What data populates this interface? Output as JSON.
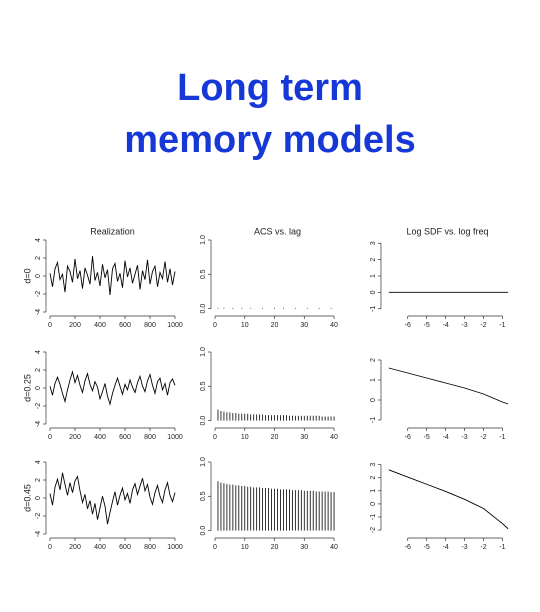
{
  "title": "Long term memory models",
  "chart_data": [
    {
      "type": "line",
      "title": "Realization",
      "ylabel": "d=0",
      "color": "#000000",
      "x": [
        0,
        20,
        40,
        60,
        80,
        100,
        120,
        140,
        160,
        180,
        200,
        220,
        240,
        260,
        280,
        300,
        320,
        340,
        360,
        380,
        400,
        420,
        440,
        460,
        480,
        500,
        520,
        540,
        560,
        580,
        600,
        620,
        640,
        660,
        680,
        700,
        720,
        740,
        760,
        780,
        800,
        820,
        840,
        860,
        880,
        900,
        920,
        940,
        960,
        980,
        1000
      ],
      "values": [
        0.3,
        -1.2,
        0.8,
        1.5,
        -0.4,
        0.2,
        -1.8,
        1.1,
        0.5,
        -0.7,
        1.9,
        -0.3,
        0.6,
        -1.4,
        0.9,
        0.1,
        -0.9,
        2.2,
        -0.5,
        0.4,
        -1.1,
        1.3,
        -0.2,
        0.7,
        -2.1,
        0.8,
        1.4,
        -0.6,
        0.3,
        -1.3,
        1.7,
        -0.1,
        0.9,
        -0.8,
        0.2,
        1.2,
        -1.5,
        0.6,
        -0.4,
        1.8,
        -0.9,
        0.5,
        1.1,
        -1.2,
        0.4,
        -0.3,
        1.6,
        -0.7,
        0.8,
        -1.0,
        0.5
      ],
      "xlim": [
        0,
        1000
      ],
      "ylim": [
        -4,
        4
      ],
      "xticks": [
        0,
        200,
        400,
        600,
        800,
        1000
      ],
      "yticks": [
        -4,
        -2,
        0,
        2,
        4
      ]
    },
    {
      "type": "bar",
      "title": "ACS vs. lag",
      "color": "#000000",
      "x": [
        1,
        2,
        3,
        4,
        5,
        6,
        7,
        8,
        9,
        10,
        11,
        12,
        13,
        14,
        15,
        16,
        17,
        18,
        19,
        20,
        21,
        22,
        23,
        24,
        25,
        26,
        27,
        28,
        29,
        30,
        31,
        32,
        33,
        34,
        35,
        36,
        37,
        38,
        39,
        40
      ],
      "values": [
        0.01,
        0,
        0.01,
        0,
        0,
        0.01,
        0,
        0,
        0.01,
        0,
        0,
        0.01,
        0,
        0,
        0,
        0.01,
        0,
        0,
        0,
        0.01,
        0,
        0,
        0.01,
        0,
        0,
        0,
        0.01,
        0,
        0,
        0,
        0.01,
        0,
        0,
        0,
        0.01,
        0,
        0,
        0,
        0.01,
        0
      ],
      "xlim": [
        0,
        42
      ],
      "ylim": [
        -0.05,
        1
      ],
      "xticks": [
        0,
        10,
        20,
        30,
        40
      ],
      "yticks": [
        {
          "value": 0,
          "label": "0.0"
        },
        {
          "value": 0.5,
          "label": "0.5"
        },
        {
          "value": 1,
          "label": "1.0"
        }
      ]
    },
    {
      "type": "line",
      "title": "Log SDF vs. log freq",
      "color": "#000000",
      "x": [
        -7,
        -6,
        -5,
        -4,
        -3,
        -2,
        -1,
        -0.7
      ],
      "values": [
        0,
        0,
        0,
        0,
        0,
        0,
        0,
        0
      ],
      "xlim": [
        -7.2,
        -0.6
      ],
      "ylim": [
        -1.2,
        3.2
      ],
      "xticks": [
        -6,
        -5,
        -4,
        -3,
        -2,
        -1
      ],
      "yticks": [
        -1,
        0,
        1,
        2,
        3
      ]
    },
    {
      "type": "line",
      "ylabel": "d=0.25",
      "color": "#000000",
      "x": [
        0,
        20,
        40,
        60,
        80,
        100,
        120,
        140,
        160,
        180,
        200,
        220,
        240,
        260,
        280,
        300,
        320,
        340,
        360,
        380,
        400,
        420,
        440,
        460,
        480,
        500,
        520,
        540,
        560,
        580,
        600,
        620,
        640,
        660,
        680,
        700,
        720,
        740,
        760,
        780,
        800,
        820,
        840,
        860,
        880,
        900,
        920,
        940,
        960,
        980,
        1000
      ],
      "values": [
        0.2,
        -0.8,
        0.5,
        1.2,
        0.4,
        -0.6,
        -1.5,
        -0.2,
        0.9,
        1.8,
        0.6,
        1.4,
        0.3,
        -0.5,
        0.8,
        1.6,
        0.4,
        -0.3,
        0.7,
        0.1,
        -1.2,
        -0.4,
        0.5,
        -0.9,
        -1.8,
        -0.6,
        0.3,
        1.1,
        0.2,
        -0.7,
        0.4,
        -0.2,
        0.9,
        0.1,
        -0.5,
        0.6,
        1.3,
        0.2,
        -0.4,
        0.8,
        1.5,
        0.3,
        -0.6,
        0.7,
        1.1,
        -0.2,
        0.5,
        -0.8,
        0.6,
        1.0,
        0.3
      ],
      "xlim": [
        0,
        1000
      ],
      "ylim": [
        -4,
        4
      ],
      "xticks": [
        0,
        200,
        400,
        600,
        800,
        1000
      ],
      "yticks": [
        -4,
        -2,
        0,
        2,
        4
      ]
    },
    {
      "type": "bar",
      "color": "#000000",
      "x": [
        1,
        2,
        3,
        4,
        5,
        6,
        7,
        8,
        9,
        10,
        11,
        12,
        13,
        14,
        15,
        16,
        17,
        18,
        19,
        20,
        21,
        22,
        23,
        24,
        25,
        26,
        27,
        28,
        29,
        30,
        31,
        32,
        33,
        34,
        35,
        36,
        37,
        38,
        39,
        40
      ],
      "values": [
        0.16,
        0.14,
        0.13,
        0.12,
        0.12,
        0.11,
        0.11,
        0.1,
        0.1,
        0.1,
        0.1,
        0.09,
        0.09,
        0.09,
        0.09,
        0.09,
        0.08,
        0.08,
        0.08,
        0.08,
        0.08,
        0.08,
        0.08,
        0.08,
        0.07,
        0.07,
        0.07,
        0.07,
        0.07,
        0.07,
        0.07,
        0.07,
        0.07,
        0.07,
        0.07,
        0.06,
        0.06,
        0.06,
        0.06,
        0.06
      ],
      "xlim": [
        0,
        42
      ],
      "ylim": [
        -0.05,
        1
      ],
      "xticks": [
        0,
        10,
        20,
        30,
        40
      ],
      "yticks": [
        {
          "value": 0,
          "label": "0.0"
        },
        {
          "value": 0.5,
          "label": "0.5"
        },
        {
          "value": 1,
          "label": "1.0"
        }
      ]
    },
    {
      "type": "line",
      "color": "#000000",
      "x": [
        -7,
        -6,
        -5,
        -4,
        -3,
        -2,
        -1,
        -0.7
      ],
      "values": [
        1.6,
        1.35,
        1.1,
        0.85,
        0.6,
        0.3,
        -0.1,
        -0.2
      ],
      "xlim": [
        -7.2,
        -0.6
      ],
      "ylim": [
        -1.2,
        2.4
      ],
      "xticks": [
        -6,
        -5,
        -4,
        -3,
        -2,
        -1
      ],
      "yticks": [
        -1,
        0,
        1,
        2
      ]
    },
    {
      "type": "line",
      "ylabel": "d=0.45",
      "color": "#000000",
      "x": [
        0,
        20,
        40,
        60,
        80,
        100,
        120,
        140,
        160,
        180,
        200,
        220,
        240,
        260,
        280,
        300,
        320,
        340,
        360,
        380,
        400,
        420,
        440,
        460,
        480,
        500,
        520,
        540,
        560,
        580,
        600,
        620,
        640,
        660,
        680,
        700,
        720,
        740,
        760,
        780,
        800,
        820,
        840,
        860,
        880,
        900,
        920,
        940,
        960,
        980,
        1000
      ],
      "values": [
        0.5,
        -0.8,
        1.2,
        2.1,
        0.9,
        2.8,
        1.5,
        0.3,
        1.7,
        0.6,
        1.9,
        2.4,
        0.8,
        -0.5,
        0.4,
        -1.2,
        -0.3,
        -1.8,
        -0.6,
        -2.4,
        -1.1,
        0.2,
        -0.9,
        -2.9,
        -1.6,
        -0.4,
        0.7,
        -0.8,
        0.3,
        1.1,
        -0.2,
        0.5,
        -0.6,
        0.9,
        1.6,
        0.4,
        1.3,
        2.2,
        0.8,
        1.5,
        0.1,
        -0.7,
        0.6,
        1.4,
        0.2,
        -0.5,
        0.9,
        1.7,
        0.3,
        -0.4,
        0.6
      ],
      "xlim": [
        0,
        1000
      ],
      "ylim": [
        -4,
        4
      ],
      "xticks": [
        0,
        200,
        400,
        600,
        800,
        1000
      ],
      "yticks": [
        -4,
        -2,
        0,
        2,
        4
      ]
    },
    {
      "type": "bar",
      "color": "#000000",
      "x": [
        1,
        2,
        3,
        4,
        5,
        6,
        7,
        8,
        9,
        10,
        11,
        12,
        13,
        14,
        15,
        16,
        17,
        18,
        19,
        20,
        21,
        22,
        23,
        24,
        25,
        26,
        27,
        28,
        29,
        30,
        31,
        32,
        33,
        34,
        35,
        36,
        37,
        38,
        39,
        40
      ],
      "values": [
        0.72,
        0.7,
        0.69,
        0.68,
        0.67,
        0.67,
        0.66,
        0.66,
        0.65,
        0.65,
        0.64,
        0.64,
        0.63,
        0.63,
        0.63,
        0.62,
        0.62,
        0.62,
        0.61,
        0.61,
        0.61,
        0.6,
        0.6,
        0.6,
        0.6,
        0.59,
        0.59,
        0.59,
        0.59,
        0.58,
        0.58,
        0.58,
        0.58,
        0.57,
        0.57,
        0.57,
        0.57,
        0.57,
        0.56,
        0.56
      ],
      "xlim": [
        0,
        42
      ],
      "ylim": [
        -0.05,
        1
      ],
      "xticks": [
        0,
        10,
        20,
        30,
        40
      ],
      "yticks": [
        {
          "value": 0,
          "label": "0.0"
        },
        {
          "value": 0.5,
          "label": "0.5"
        },
        {
          "value": 1,
          "label": "1.0"
        }
      ]
    },
    {
      "type": "line",
      "color": "#000000",
      "x": [
        -7,
        -6,
        -5,
        -4,
        -3,
        -2,
        -1,
        -0.7
      ],
      "values": [
        2.6,
        2.05,
        1.5,
        0.95,
        0.35,
        -0.35,
        -1.5,
        -1.9
      ],
      "xlim": [
        -7.2,
        -0.6
      ],
      "ylim": [
        -2.3,
        3.2
      ],
      "xticks": [
        -6,
        -5,
        -4,
        -3,
        -2,
        -1
      ],
      "yticks": [
        -2,
        -1,
        0,
        1,
        2,
        3
      ]
    }
  ]
}
